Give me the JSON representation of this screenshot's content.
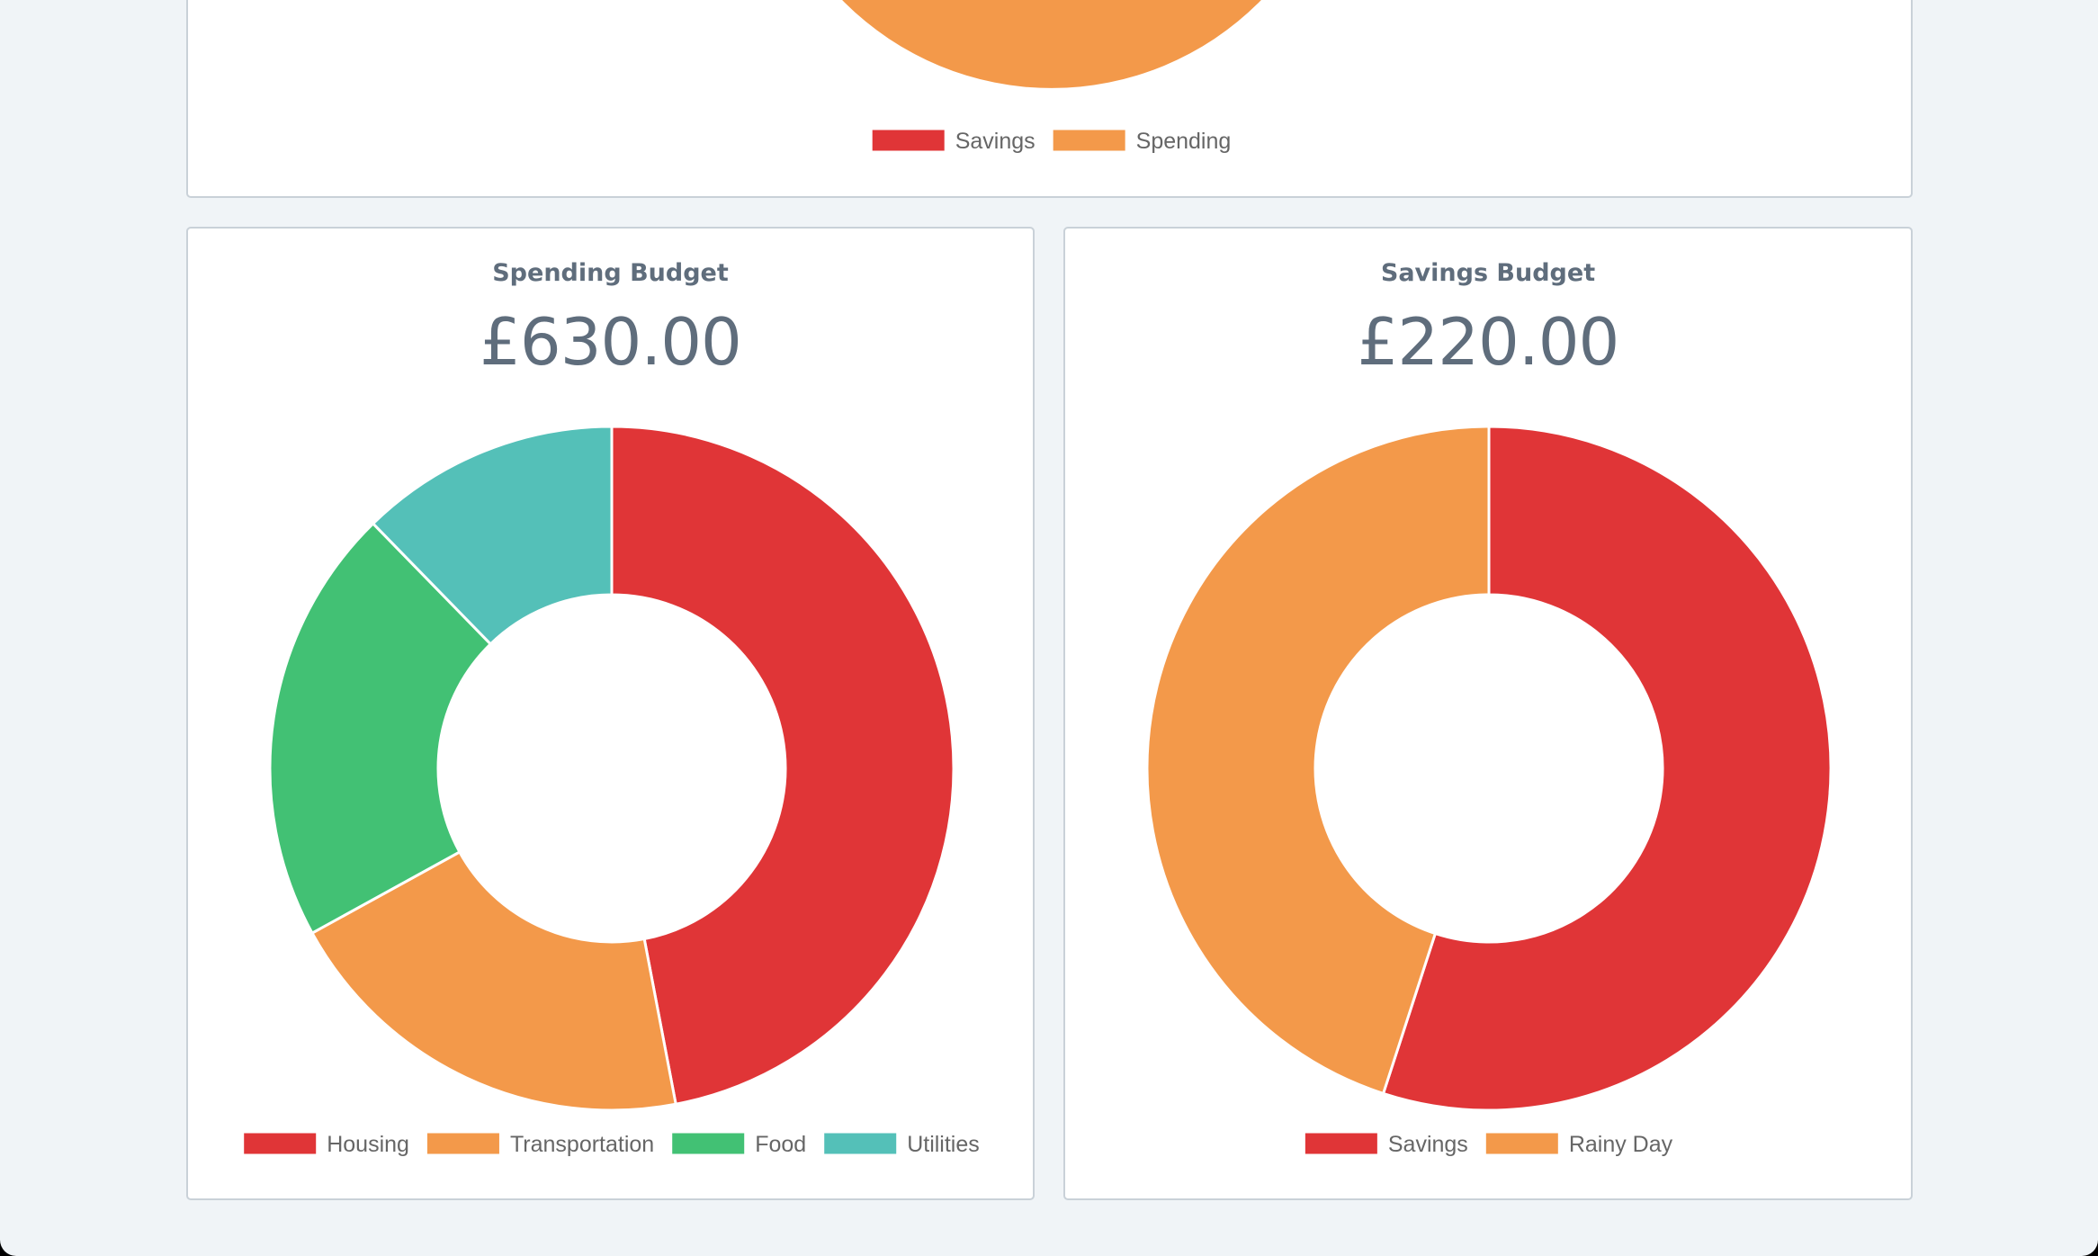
{
  "top_panel": {
    "chart_data": {
      "type": "pie",
      "title": "",
      "legend": [
        "Savings",
        "Spending"
      ],
      "colors": [
        "#e03537",
        "#f3994a"
      ],
      "visible_slice": "Spending"
    }
  },
  "spending_panel": {
    "title": "Spending Budget",
    "amount": "£630.00"
  },
  "savings_panel": {
    "title": "Savings Budget",
    "amount": "£220.00"
  },
  "chart_data": [
    {
      "type": "doughnut",
      "title": "Spending Budget",
      "total_label": "£630.00",
      "categories": [
        "Housing",
        "Transportation",
        "Food",
        "Utilities"
      ],
      "values": [
        0.47,
        0.2,
        0.207,
        0.123
      ],
      "value_units": "share of total (estimated from slice angles)",
      "colors": [
        "#e03537",
        "#f3994a",
        "#42c174",
        "#54c0b8"
      ],
      "legend_position": "bottom"
    },
    {
      "type": "doughnut",
      "title": "Savings Budget",
      "total_label": "£220.00",
      "categories": [
        "Savings",
        "Rainy Day"
      ],
      "values": [
        0.55,
        0.45
      ],
      "value_units": "share of total (estimated from slice angles)",
      "colors": [
        "#e03537",
        "#f3994a"
      ],
      "legend_position": "bottom"
    }
  ]
}
